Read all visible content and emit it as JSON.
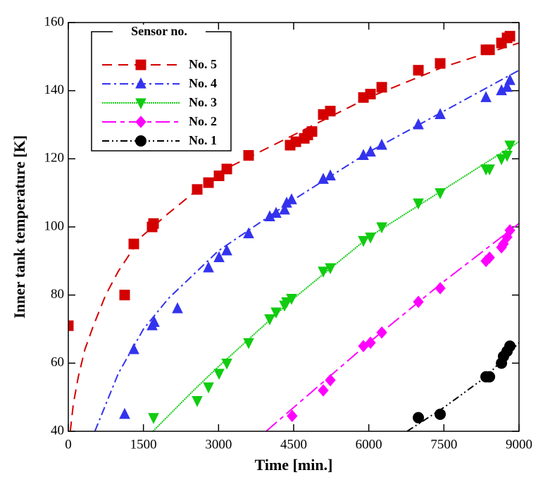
{
  "chart_data": {
    "type": "scatter",
    "xlabel": "Time [min.]",
    "ylabel": "Inner tank temperature [K]",
    "legend_title": "Sensor no.",
    "legend": "upper left",
    "xlim": [
      0,
      9000
    ],
    "ylim": [
      40,
      160
    ],
    "xticks": [
      0,
      1500,
      3000,
      4500,
      6000,
      7500,
      9000
    ],
    "yticks": [
      40,
      60,
      80,
      100,
      120,
      140,
      160
    ],
    "series": [
      {
        "name": "No. 5",
        "color": "#d40000",
        "marker": "square",
        "dash": "14,9",
        "x": [
          0,
          1125,
          1308,
          1674,
          1702,
          2574,
          2799,
          3010,
          3165,
          3600,
          4430,
          4543,
          4712,
          4782,
          4866,
          5091,
          5232,
          5893,
          6034,
          6259,
          6990,
          7426,
          8340,
          8411,
          8650,
          8762,
          8818
        ],
        "values": [
          71,
          80,
          95,
          100,
          101,
          111,
          113,
          115,
          117,
          121,
          124,
          125,
          126,
          127,
          128,
          133,
          134,
          138,
          139,
          141,
          146,
          148,
          152,
          152,
          154,
          155.5,
          156
        ],
        "fit": {
          "x": [
            40,
            100,
            200,
            330,
            500,
            745,
            1000,
            1450,
            2000,
            3000,
            4500,
            6000,
            7500,
            9000
          ],
          "values": [
            40,
            48,
            56,
            64,
            71,
            80,
            87,
            97,
            104,
            116,
            127,
            138,
            147,
            154
          ]
        }
      },
      {
        "name": "No. 4",
        "color": "#3333ee",
        "marker": "triangle-up",
        "dash": "12,5,3,5",
        "x": [
          1125,
          1308,
          1674,
          1716,
          2180,
          2799,
          3010,
          3165,
          3600,
          4022,
          4149,
          4318,
          4360,
          4458,
          5091,
          5232,
          5893,
          6034,
          6259,
          6990,
          7426,
          8340,
          8650,
          8762,
          8818
        ],
        "values": [
          45,
          64,
          71,
          72,
          76,
          88,
          91,
          93,
          98,
          103,
          104,
          105,
          107,
          108,
          114,
          115,
          121,
          122,
          124,
          130,
          133,
          138,
          140,
          141,
          143
        ],
        "fit": {
          "x": [
            530,
            1000,
            1500,
            2000,
            3000,
            4500,
            6000,
            7500,
            9000
          ],
          "values": [
            40,
            57,
            70,
            79,
            93,
            108,
            122,
            134,
            146
          ]
        }
      },
      {
        "name": "No. 3",
        "color": "#11cc11",
        "marker": "triangle-down",
        "dash": "2,1",
        "x": [
          1702,
          2574,
          2799,
          3010,
          3165,
          3600,
          4022,
          4149,
          4318,
          4360,
          4458,
          5091,
          5232,
          5893,
          6034,
          6259,
          6990,
          7426,
          8340,
          8411,
          8650,
          8762,
          8818
        ],
        "values": [
          44,
          49,
          53,
          57,
          60,
          66,
          73,
          75,
          77,
          78,
          79,
          87,
          88,
          96,
          97,
          100,
          107,
          110,
          117,
          117,
          120,
          121,
          124
        ],
        "fit": {
          "x": [
            1690,
            2500,
            3000,
            4500,
            6000,
            7500,
            9000
          ],
          "values": [
            40,
            52,
            59,
            79,
            97,
            111,
            125
          ]
        }
      },
      {
        "name": "No. 2",
        "color": "#ff00ff",
        "marker": "diamond",
        "dash": "20,6,6,6",
        "x": [
          4470,
          5091,
          5232,
          5893,
          6034,
          6259,
          6990,
          7426,
          8340,
          8411,
          8650,
          8690,
          8762,
          8818
        ],
        "values": [
          44.5,
          52,
          55,
          65,
          66,
          69,
          78,
          82,
          90,
          91,
          94,
          95,
          97,
          99
        ],
        "fit": {
          "x": [
            3950,
            4500,
            6000,
            7500,
            9000
          ],
          "values": [
            40,
            47,
            66,
            84,
            101
          ]
        }
      },
      {
        "name": "No. 1",
        "color": "#000000",
        "marker": "circle",
        "dash": "10,4,2,4,2,4",
        "x": [
          6990,
          7426,
          8340,
          8411,
          8650,
          8690,
          8762,
          8818
        ],
        "values": [
          44,
          45,
          56,
          56,
          60,
          62,
          63.5,
          65
        ],
        "fit": {
          "x": [
            6765,
            7500,
            8340,
            9000
          ],
          "values": [
            40,
            47,
            56,
            66
          ]
        }
      }
    ]
  }
}
